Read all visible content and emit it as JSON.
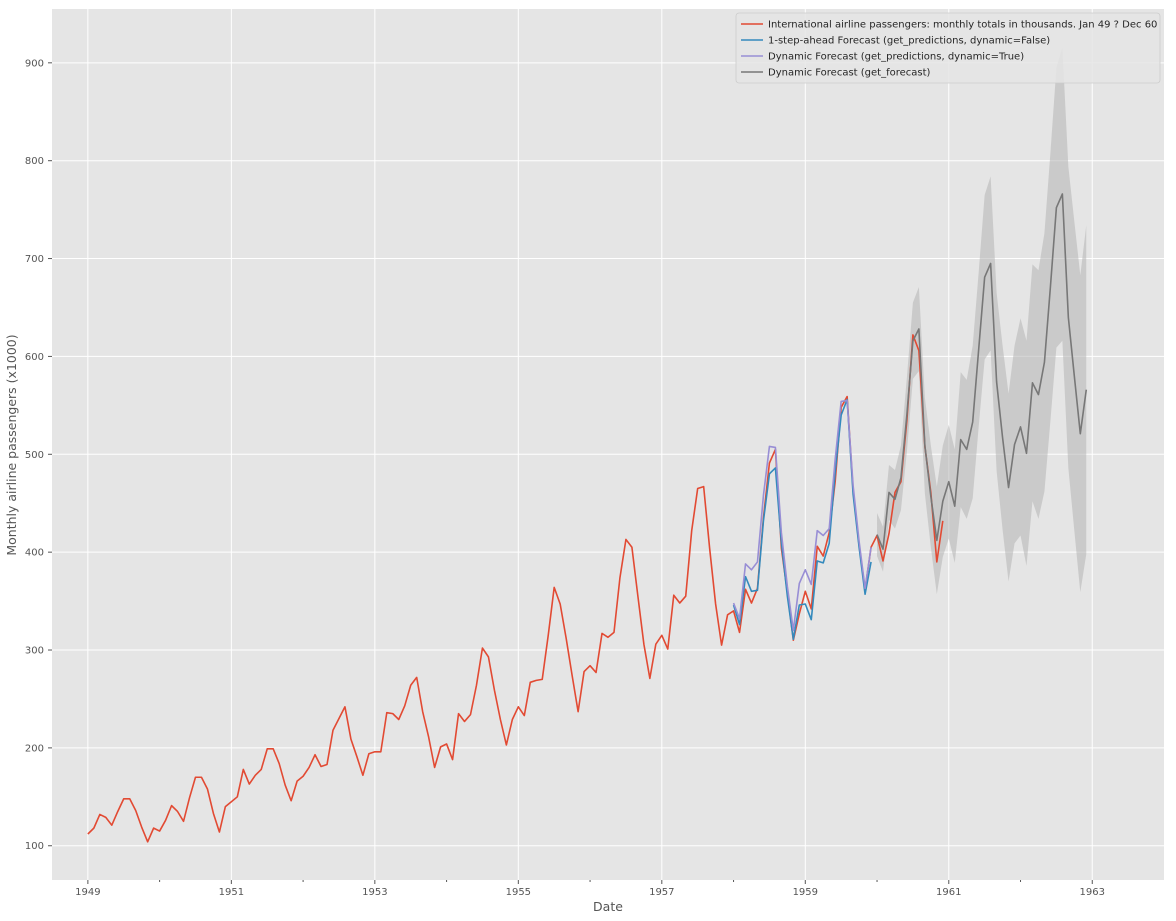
{
  "chart_data": {
    "type": "line",
    "xlabel": "Date",
    "ylabel": "Monthly airline passengers (x1000)",
    "xlim": [
      1948.5,
      1964.0
    ],
    "ylim": [
      65,
      955
    ],
    "x_ticks": [
      {
        "value": 1949,
        "label": "1949"
      },
      {
        "value": 1951,
        "label": "1951"
      },
      {
        "value": 1953,
        "label": "1953"
      },
      {
        "value": 1955,
        "label": "1955"
      },
      {
        "value": 1957,
        "label": "1957"
      },
      {
        "value": 1959,
        "label": "1959"
      },
      {
        "value": 1961,
        "label": "1961"
      },
      {
        "value": 1963,
        "label": "1963"
      }
    ],
    "x_minor_ticks": [
      1950,
      1952,
      1954,
      1956,
      1958,
      1960,
      1962
    ],
    "y_ticks": [
      {
        "value": 100,
        "label": "100"
      },
      {
        "value": 200,
        "label": "200"
      },
      {
        "value": 300,
        "label": "300"
      },
      {
        "value": 400,
        "label": "400"
      },
      {
        "value": 500,
        "label": "500"
      },
      {
        "value": 600,
        "label": "600"
      },
      {
        "value": 700,
        "label": "700"
      },
      {
        "value": 800,
        "label": "800"
      },
      {
        "value": 900,
        "label": "900"
      }
    ],
    "grid": true,
    "legend_position": "top-right",
    "observed_start": "1949-01",
    "observed": [
      112,
      118,
      132,
      129,
      121,
      135,
      148,
      148,
      136,
      119,
      104,
      118,
      115,
      126,
      141,
      135,
      125,
      149,
      170,
      170,
      158,
      133,
      114,
      140,
      145,
      150,
      178,
      163,
      172,
      178,
      199,
      199,
      184,
      162,
      146,
      166,
      171,
      180,
      193,
      181,
      183,
      218,
      230,
      242,
      209,
      191,
      172,
      194,
      196,
      196,
      236,
      235,
      229,
      243,
      264,
      272,
      237,
      211,
      180,
      201,
      204,
      188,
      235,
      227,
      234,
      264,
      302,
      293,
      259,
      229,
      203,
      229,
      242,
      233,
      267,
      269,
      270,
      315,
      364,
      347,
      312,
      274,
      237,
      278,
      284,
      277,
      317,
      313,
      318,
      374,
      413,
      405,
      355,
      306,
      271,
      306,
      315,
      301,
      356,
      348,
      355,
      422,
      465,
      467,
      404,
      347,
      305,
      336,
      340,
      318,
      362,
      348,
      363,
      435,
      491,
      505,
      404,
      359,
      310,
      337,
      360,
      342,
      406,
      396,
      420,
      472,
      548,
      559,
      463,
      407,
      362,
      405,
      417,
      391,
      419,
      461,
      472,
      535,
      622,
      606,
      508,
      461,
      390,
      432
    ],
    "one_step_start": "1958-01",
    "one_step": [
      346,
      326,
      375,
      360,
      361,
      432,
      480,
      486,
      410,
      355,
      311,
      346,
      347,
      331,
      391,
      389,
      409,
      482,
      540,
      556,
      459,
      405,
      357,
      390
    ],
    "dynamic_start": "1958-01",
    "dynamic": [
      348,
      332,
      388,
      382,
      390,
      458,
      508,
      507,
      420,
      365,
      320,
      368,
      382,
      367,
      422,
      417,
      424,
      495,
      554,
      555,
      468,
      411,
      363,
      405
    ],
    "forecast_start": "1960-01",
    "forecast": [
      418,
      403,
      461,
      454,
      476,
      541,
      616,
      628,
      509,
      457,
      412,
      452,
      472,
      447,
      515,
      505,
      533,
      607,
      681,
      695,
      574,
      517,
      466,
      510,
      528,
      501,
      573,
      561,
      594,
      671,
      752,
      766,
      640,
      580,
      521,
      566
    ],
    "forecast_upper": [
      440,
      426,
      489,
      484,
      509,
      579,
      655,
      671,
      558,
      509,
      467,
      509,
      530,
      505,
      584,
      576,
      611,
      686,
      765,
      784,
      665,
      611,
      562,
      611,
      639,
      616,
      694,
      688,
      726,
      808,
      895,
      916,
      794,
      738,
      683,
      734
    ],
    "forecast_lower": [
      396,
      380,
      433,
      424,
      443,
      503,
      577,
      585,
      460,
      405,
      357,
      395,
      414,
      389,
      446,
      434,
      455,
      528,
      597,
      606,
      483,
      423,
      370,
      409,
      417,
      386,
      452,
      434,
      462,
      534,
      609,
      616,
      486,
      422,
      359,
      398
    ],
    "series": [
      {
        "name": "International airline passengers: monthly totals in thousands. Jan 49 ? Dec 60",
        "color": "#E24A33",
        "key": "observed"
      },
      {
        "name": "1-step-ahead Forecast (get_predictions, dynamic=False)",
        "color": "#348ABD",
        "key": "one_step"
      },
      {
        "name": "Dynamic Forecast (get_predictions, dynamic=True)",
        "color": "#988ED5",
        "key": "dynamic"
      },
      {
        "name": "Dynamic Forecast (get_forecast)",
        "color": "#777777",
        "key": "forecast"
      }
    ],
    "band_color": "#b4b4b4"
  }
}
